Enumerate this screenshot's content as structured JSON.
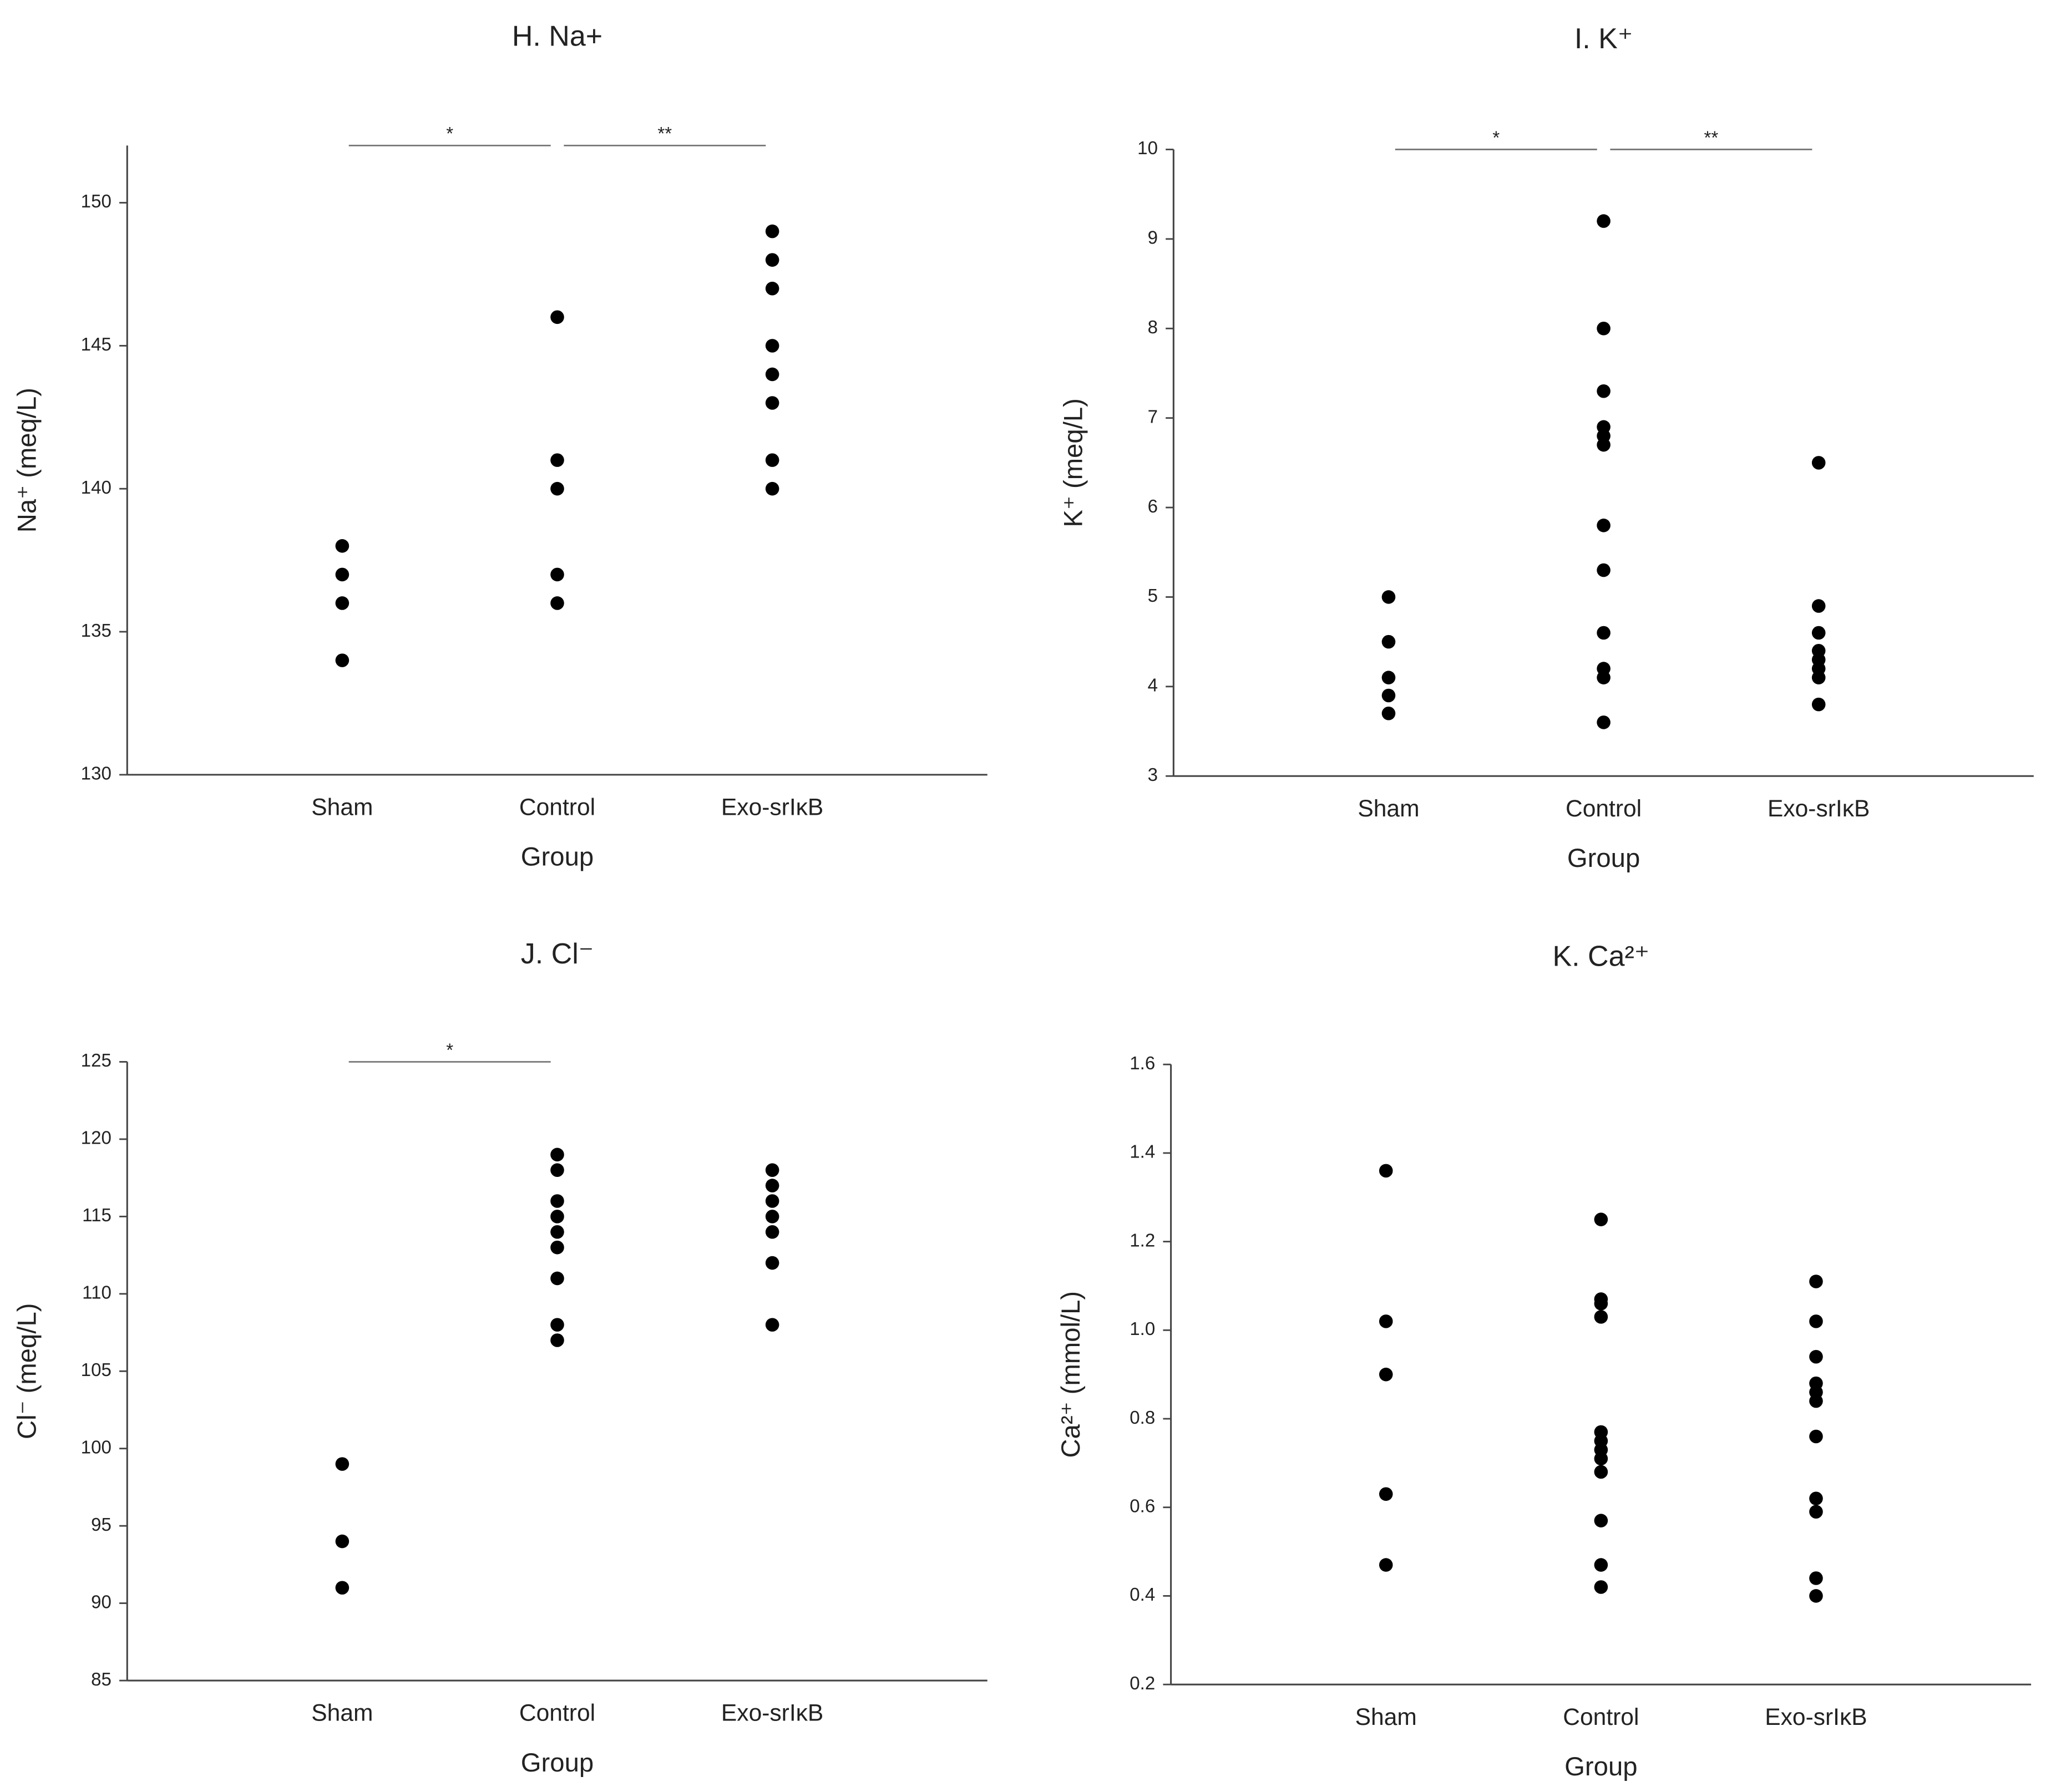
{
  "chart_data": [
    {
      "type": "scatter",
      "title": "H. Na+",
      "xlabel": "Group",
      "ylabel": "Na⁺ (meq/L)",
      "categories": [
        "Sham",
        "Control",
        "Exo-srIκB"
      ],
      "values": [
        [
          138,
          137,
          136,
          134
        ],
        [
          146,
          141,
          140,
          137,
          136
        ],
        [
          149,
          148,
          147,
          145,
          144,
          143,
          141,
          140
        ]
      ],
      "color": "#000000",
      "ylim": [
        130,
        152
      ],
      "yticks": [
        130,
        135,
        140,
        145,
        150
      ],
      "annotations": [
        {
          "text": "*",
          "between": [
            0,
            1
          ]
        },
        {
          "text": "**",
          "between": [
            1,
            2
          ]
        }
      ]
    },
    {
      "type": "scatter",
      "title": "I. K⁺",
      "xlabel": "Group",
      "ylabel": "K⁺ (meq/L)",
      "categories": [
        "Sham",
        "Control",
        "Exo-srIκB"
      ],
      "values": [
        [
          5.0,
          4.5,
          4.1,
          3.9,
          3.7
        ],
        [
          9.2,
          8.0,
          7.3,
          6.9,
          6.8,
          6.7,
          5.8,
          5.3,
          4.6,
          4.2,
          4.1,
          3.6
        ],
        [
          6.5,
          4.9,
          4.6,
          4.4,
          4.3,
          4.2,
          4.1,
          3.8
        ]
      ],
      "color": "#000000",
      "ylim": [
        3,
        10
      ],
      "yticks": [
        3,
        4,
        5,
        6,
        7,
        8,
        9,
        10
      ],
      "annotations": [
        {
          "text": "*",
          "between": [
            0,
            1
          ]
        },
        {
          "text": "**",
          "between": [
            1,
            2
          ]
        }
      ]
    },
    {
      "type": "scatter",
      "title": "J. Cl⁻",
      "xlabel": "Group",
      "ylabel": "Cl⁻ (meq/L)",
      "categories": [
        "Sham",
        "Control",
        "Exo-srIκB"
      ],
      "values": [
        [
          99,
          94,
          91
        ],
        [
          119,
          118,
          116,
          115,
          114,
          113,
          111,
          108,
          107
        ],
        [
          118,
          117,
          116,
          115,
          114,
          112,
          108
        ]
      ],
      "color": "#000000",
      "ylim": [
        85,
        125
      ],
      "yticks": [
        85,
        90,
        95,
        100,
        105,
        110,
        115,
        120,
        125
      ],
      "annotations": [
        {
          "text": "*",
          "between": [
            0,
            1
          ]
        }
      ]
    },
    {
      "type": "scatter",
      "title": "K. Ca²⁺",
      "xlabel": "Group",
      "ylabel": "Ca²⁺ (mmol/L)",
      "categories": [
        "Sham",
        "Control",
        "Exo-srIκB"
      ],
      "values": [
        [
          1.36,
          1.02,
          0.9,
          0.63,
          0.47
        ],
        [
          1.25,
          1.07,
          1.06,
          1.03,
          0.77,
          0.75,
          0.73,
          0.71,
          0.68,
          0.57,
          0.47,
          0.42
        ],
        [
          1.11,
          1.02,
          0.94,
          0.88,
          0.86,
          0.84,
          0.76,
          0.62,
          0.59,
          0.44,
          0.4
        ]
      ],
      "color": "#000000",
      "ylim": [
        0.2,
        1.6
      ],
      "yticks": [
        0.2,
        0.4,
        0.6,
        0.8,
        {
          "value": 1.0,
          "label": "1.0"
        },
        1.2,
        1.4,
        1.6
      ],
      "annotations": []
    }
  ]
}
